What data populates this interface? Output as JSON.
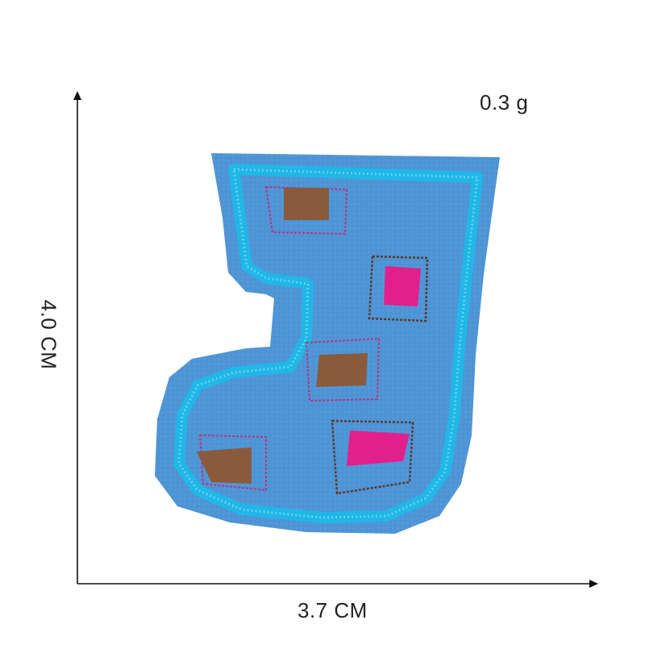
{
  "product": {
    "weight": "0.3 g",
    "width": "3.7 CM",
    "height": "4.0 CM"
  },
  "colors": {
    "felt": "#4f95d6",
    "satin_border": "#21b7e6",
    "brown": "#8a5a3c",
    "magenta": "#e2208c",
    "axis": "#111111"
  }
}
